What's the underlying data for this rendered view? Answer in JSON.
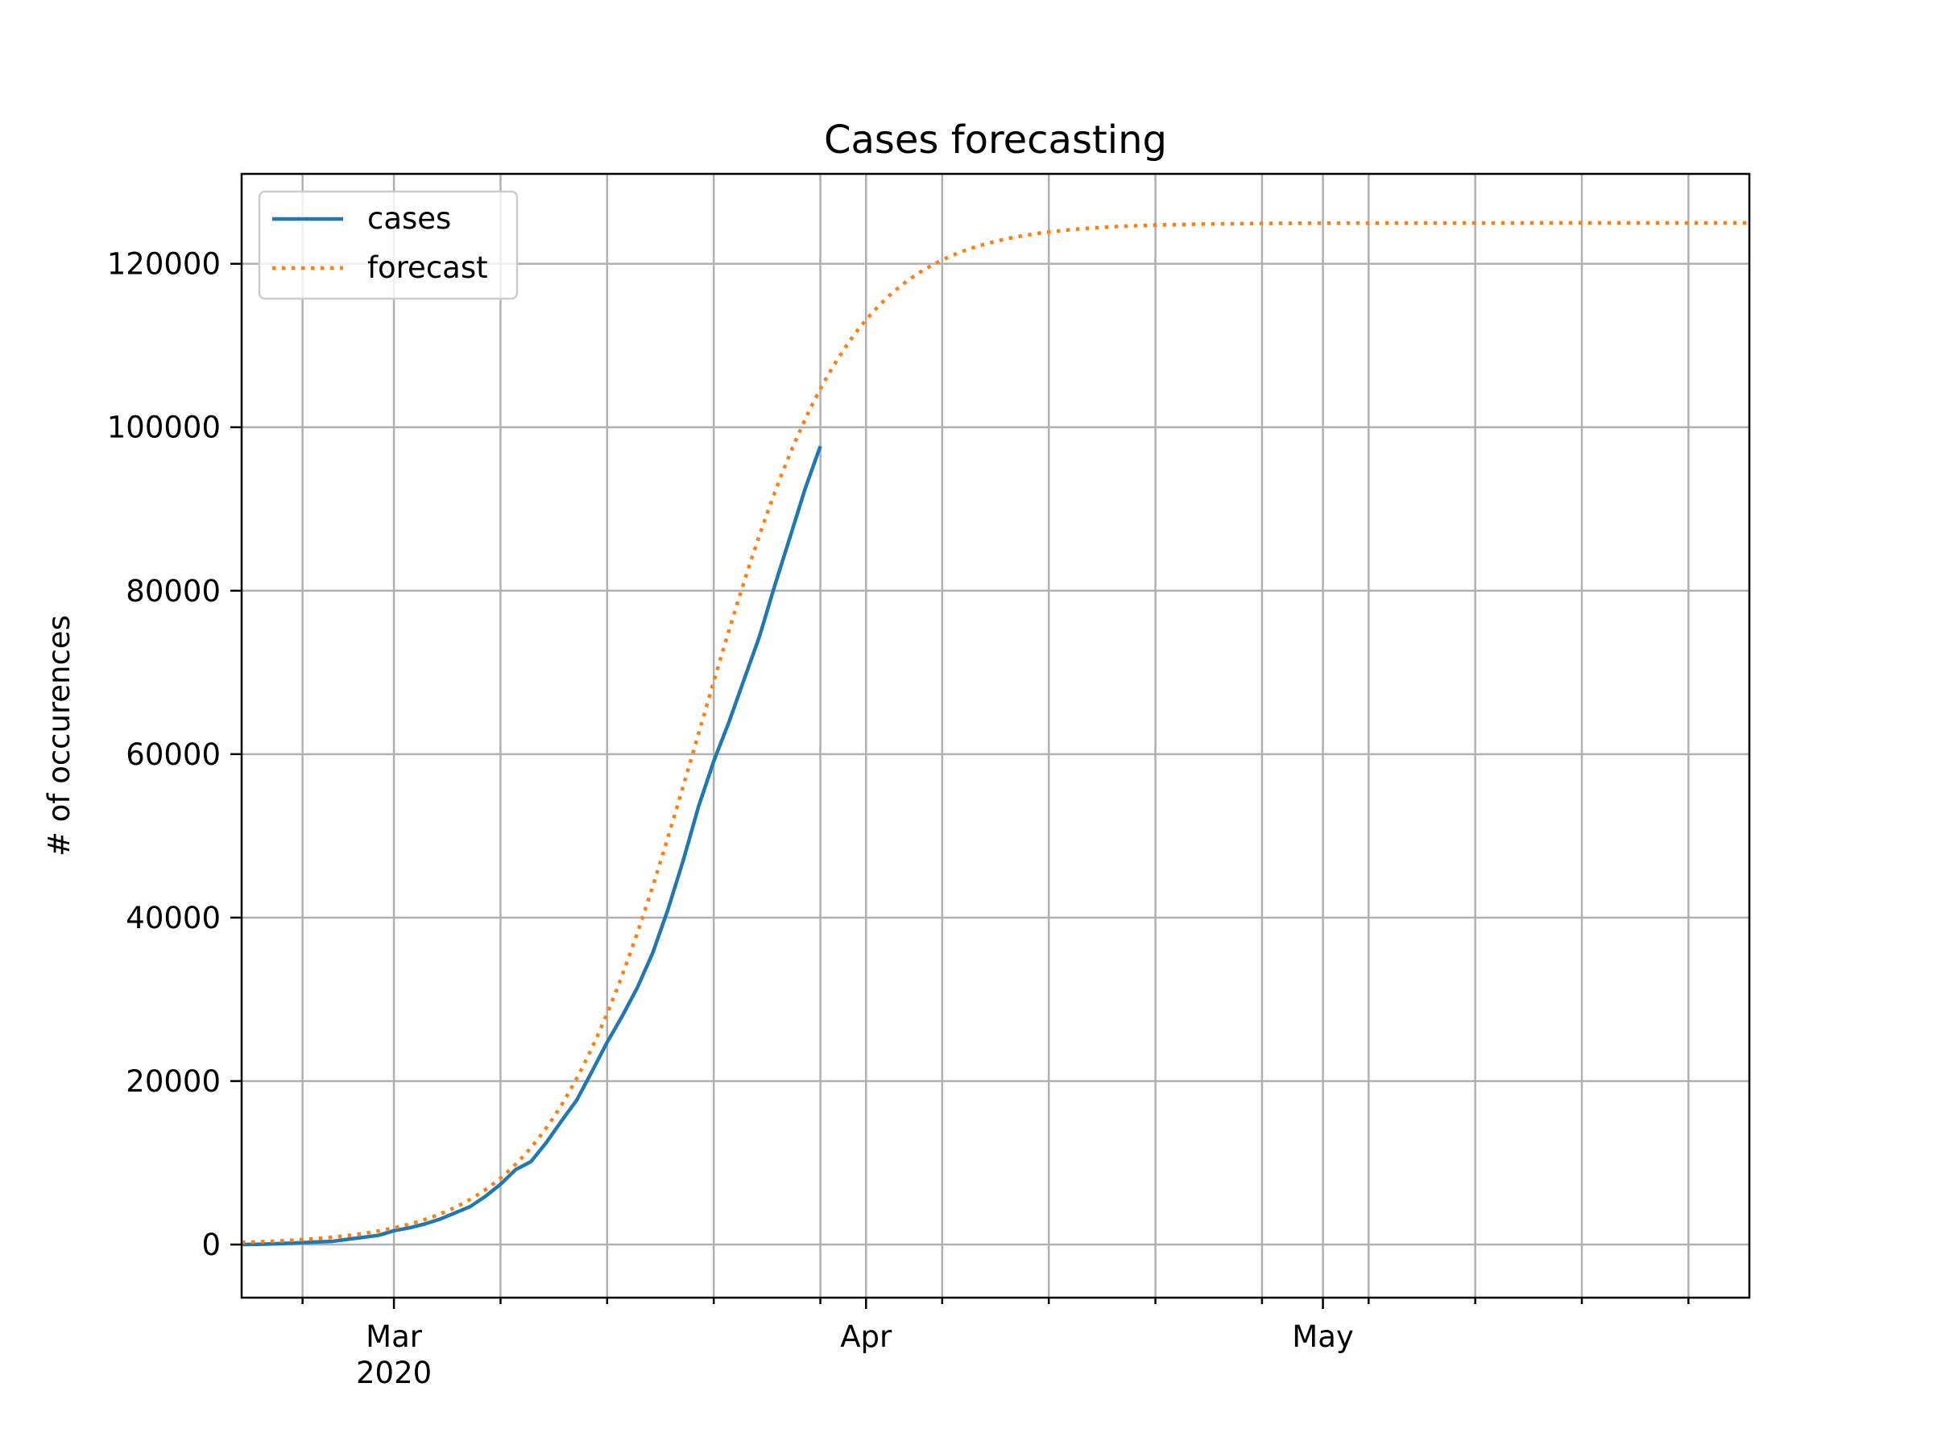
{
  "chart_data": {
    "type": "line",
    "title": "Cases forecasting",
    "xlabel": "",
    "ylabel": "# of occurences",
    "x_range": [
      "2020-02-20",
      "2020-05-29"
    ],
    "ylim": [
      -6500,
      131000
    ],
    "grid": true,
    "legend_position": "upper-left",
    "x_ticks": [
      {
        "date": "2020-03-01",
        "label": "Mar",
        "sublabel": "2020"
      },
      {
        "date": "2020-04-01",
        "label": "Apr",
        "sublabel": ""
      },
      {
        "date": "2020-05-01",
        "label": "May",
        "sublabel": ""
      }
    ],
    "x_minor_ticks": [
      "2020-02-24",
      "2020-03-08",
      "2020-03-15",
      "2020-03-22",
      "2020-03-29",
      "2020-04-06",
      "2020-04-13",
      "2020-04-20",
      "2020-04-27",
      "2020-05-04",
      "2020-05-11",
      "2020-05-18",
      "2020-05-25"
    ],
    "y_ticks": [
      0,
      20000,
      40000,
      60000,
      80000,
      100000,
      120000
    ],
    "series": [
      {
        "name": "cases",
        "color": "#1f77b4",
        "style": "solid",
        "points": [
          [
            "2020-02-20",
            3
          ],
          [
            "2020-02-21",
            20
          ],
          [
            "2020-02-22",
            79
          ],
          [
            "2020-02-23",
            150
          ],
          [
            "2020-02-24",
            229
          ],
          [
            "2020-02-25",
            322
          ],
          [
            "2020-02-26",
            400
          ],
          [
            "2020-02-27",
            650
          ],
          [
            "2020-02-28",
            888
          ],
          [
            "2020-02-29",
            1128
          ],
          [
            "2020-03-01",
            1694
          ],
          [
            "2020-03-02",
            2036
          ],
          [
            "2020-03-03",
            2502
          ],
          [
            "2020-03-04",
            3089
          ],
          [
            "2020-03-05",
            3858
          ],
          [
            "2020-03-06",
            4636
          ],
          [
            "2020-03-07",
            5883
          ],
          [
            "2020-03-08",
            7375
          ],
          [
            "2020-03-09",
            9172
          ],
          [
            "2020-03-10",
            10149
          ],
          [
            "2020-03-11",
            12462
          ],
          [
            "2020-03-12",
            15113
          ],
          [
            "2020-03-13",
            17660
          ],
          [
            "2020-03-14",
            21157
          ],
          [
            "2020-03-15",
            24747
          ],
          [
            "2020-03-16",
            27980
          ],
          [
            "2020-03-17",
            31506
          ],
          [
            "2020-03-18",
            35713
          ],
          [
            "2020-03-19",
            41035
          ],
          [
            "2020-03-20",
            47021
          ],
          [
            "2020-03-21",
            53578
          ],
          [
            "2020-03-22",
            59138
          ],
          [
            "2020-03-23",
            63927
          ],
          [
            "2020-03-24",
            69176
          ],
          [
            "2020-03-25",
            74386
          ],
          [
            "2020-03-26",
            80589
          ],
          [
            "2020-03-27",
            86498
          ],
          [
            "2020-03-28",
            92472
          ],
          [
            "2020-03-29",
            97689
          ]
        ]
      },
      {
        "name": "forecast",
        "color": "#ff7f0e",
        "style": "dotted",
        "params": {
          "K": 125000,
          "r": 0.205,
          "t0": "2020-03-21"
        }
      }
    ]
  }
}
